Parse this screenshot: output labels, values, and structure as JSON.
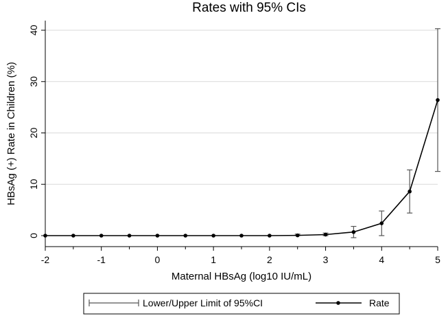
{
  "chart_data": {
    "type": "line",
    "title": "Rates with 95% CIs",
    "xlabel": "Maternal HBsAg (log10 IU/mL)",
    "ylabel": "HBsAg (+) Rate in Children (%)",
    "xlim": [
      -2,
      5
    ],
    "ylim": [
      0,
      40
    ],
    "xticks": [
      "-2",
      "-1.5",
      "-1",
      "-0.5",
      "0",
      "0.5",
      "1",
      "1.5",
      "2",
      "2.5",
      "3",
      "3.5",
      "4",
      "4.5",
      "5"
    ],
    "xtick_labels": [
      "-2",
      "",
      "-1",
      "",
      "0",
      "",
      "1",
      "",
      "2",
      "",
      "3",
      "",
      "4",
      "",
      "5"
    ],
    "yticks": [
      "0",
      "10",
      "20",
      "30",
      "40"
    ],
    "grid": "horizontal",
    "legend_position": "bottom",
    "series": [
      {
        "name": "Rate",
        "x": [
          -2,
          -1.5,
          -1,
          -0.5,
          0,
          0.5,
          1,
          1.5,
          2,
          2.5,
          3,
          3.5,
          4,
          4.5,
          5
        ],
        "values": [
          0,
          0,
          0,
          0,
          0,
          0,
          0,
          0,
          0,
          0.05,
          0.2,
          0.7,
          2.4,
          8.6,
          26.4
        ]
      },
      {
        "name": "Lower/Upper Limit of 95%CI",
        "x": [
          2.5,
          3,
          3.5,
          4,
          4.5,
          5
        ],
        "lower": [
          0,
          0,
          -0.4,
          0,
          4.4,
          12.5
        ],
        "upper": [
          0.3,
          0.5,
          1.8,
          4.8,
          12.8,
          40.3
        ]
      }
    ],
    "colors": {
      "line": "#000000",
      "ci": "#555555",
      "grid": "#d9d9d9"
    }
  }
}
